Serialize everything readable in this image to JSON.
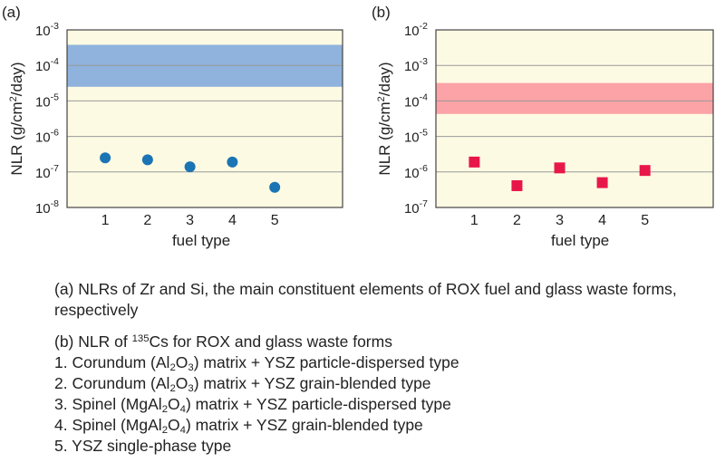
{
  "chart_data": [
    {
      "type": "scatter",
      "panel_label": "(a)",
      "xlabel": "fuel type",
      "ylabel": "NLR (g/cm2/day)",
      "ylabel_parts": [
        "NLR (g/cm",
        "2",
        "/day)"
      ],
      "y_scale": "log",
      "ylim_exp": [
        -8,
        -3
      ],
      "y_tick_exponents": [
        "-8",
        "-7",
        "-6",
        "-5",
        "-4",
        "-3"
      ],
      "categories": [
        "1",
        "2",
        "3",
        "4",
        "5"
      ],
      "x": [
        1,
        2,
        3,
        4,
        5
      ],
      "values": [
        2.5e-07,
        2.2e-07,
        1.4e-07,
        1.9e-07,
        3.7e-08
      ],
      "marker": "circle",
      "marker_color": "#1b74b4",
      "band": {
        "low": 2.5e-05,
        "high": 0.00038,
        "color": "#8fb3dd"
      },
      "grid": true,
      "background": "#fdfae3"
    },
    {
      "type": "scatter",
      "panel_label": "(b)",
      "xlabel": "fuel type",
      "ylabel": "NLR (g/cm2/day)",
      "ylabel_parts": [
        "NLR (g/cm",
        "2",
        "/day)"
      ],
      "y_scale": "log",
      "ylim_exp": [
        -7,
        -2
      ],
      "y_tick_exponents": [
        "-7",
        "-6",
        "-5",
        "-4",
        "-3",
        "-2"
      ],
      "categories": [
        "1",
        "2",
        "3",
        "4",
        "5"
      ],
      "x": [
        1,
        2,
        3,
        4,
        5
      ],
      "values": [
        1.9e-06,
        4.1e-07,
        1.3e-06,
        5e-07,
        1.1e-06
      ],
      "marker": "square",
      "marker_color": "#e8174a",
      "band": {
        "low": 4.3e-05,
        "high": 0.00032,
        "color": "#fba3a6"
      },
      "grid": true,
      "background": "#fdfae3"
    }
  ],
  "caption": {
    "a": "(a) NLRs of Zr and Si, the main constituent elements of ROX fuel and glass waste forms, respectively",
    "b": {
      "prefix": "(b) NLR of ",
      "isotope": "135",
      "element": "Cs",
      "suffix": " for ROX and glass waste forms"
    },
    "items": [
      {
        "num": "1. ",
        "pre": "Corundum (Al",
        "s1": "2",
        "mid": "O",
        "s2": "3",
        "post": ") matrix + YSZ particle-dispersed type"
      },
      {
        "num": "2. ",
        "pre": "Corundum (Al",
        "s1": "2",
        "mid": "O",
        "s2": "3",
        "post": ") matrix + YSZ grain-blended type"
      },
      {
        "num": "3. ",
        "pre": "Spinel (MgAl",
        "s1": "2",
        "mid": "O",
        "s2": "4",
        "post": ") matrix + YSZ particle-dispersed type"
      },
      {
        "num": "4. ",
        "pre": "Spinel (MgAl",
        "s1": "2",
        "mid": "O",
        "s2": "4",
        "post": ") matrix + YSZ grain-blended type"
      }
    ],
    "last_item": "5. YSZ single-phase type"
  }
}
